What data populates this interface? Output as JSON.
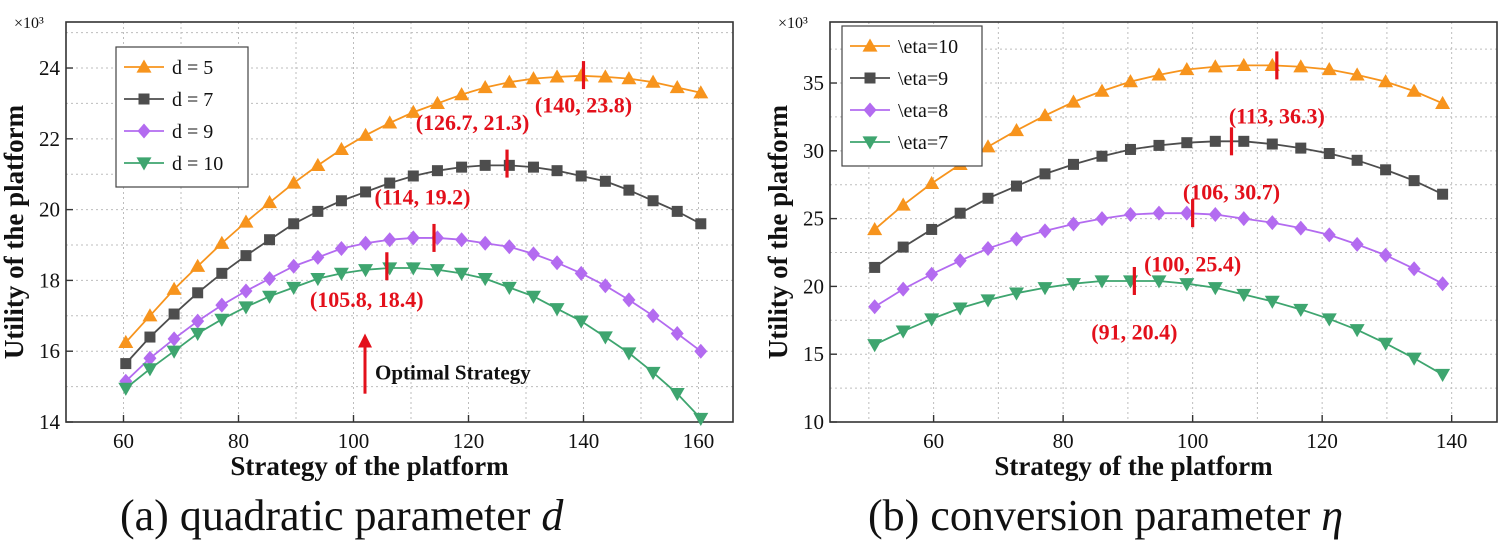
{
  "colors": {
    "d5": "#f7941d",
    "d7": "#4d4d4d",
    "d9": "#b36bf0",
    "d10": "#3ea56f",
    "annotation": "#e3101b",
    "grid": "#bdbdbd"
  },
  "chart_data": [
    {
      "type": "line",
      "panel": "a",
      "caption_prefix": "(a) quadratic parameter",
      "caption_var": "d",
      "xlabel": "Strategy of the platform",
      "ylabel": "Utility of the platform",
      "y_multiplier": "×10³",
      "xlim": [
        50,
        166
      ],
      "ylim": [
        14,
        25.3
      ],
      "xticks": [
        60,
        80,
        100,
        120,
        140,
        160
      ],
      "yticks": [
        14,
        16,
        18,
        20,
        22,
        24
      ],
      "grid": true,
      "legend_position": "top-left",
      "x": [
        60.4,
        64.6,
        68.8,
        72.9,
        77.1,
        81.3,
        85.4,
        89.6,
        93.8,
        97.9,
        102.1,
        106.3,
        110.4,
        114.6,
        118.8,
        122.9,
        127.1,
        131.3,
        135.4,
        139.6,
        143.8,
        147.9,
        152.1,
        156.3,
        160.4
      ],
      "series": [
        {
          "name": "d = 5",
          "marker": "triangle-up",
          "color_key": "d5",
          "values": [
            16.25,
            17.0,
            17.75,
            18.4,
            19.05,
            19.65,
            20.2,
            20.75,
            21.25,
            21.7,
            22.1,
            22.45,
            22.75,
            23.0,
            23.25,
            23.45,
            23.6,
            23.7,
            23.75,
            23.78,
            23.75,
            23.7,
            23.6,
            23.45,
            23.3
          ]
        },
        {
          "name": "d = 7",
          "marker": "square",
          "color_key": "d7",
          "values": [
            15.65,
            16.4,
            17.05,
            17.65,
            18.2,
            18.7,
            19.15,
            19.6,
            19.95,
            20.25,
            20.5,
            20.75,
            20.95,
            21.1,
            21.2,
            21.25,
            21.25,
            21.2,
            21.1,
            20.95,
            20.8,
            20.55,
            20.25,
            19.95,
            19.6
          ]
        },
        {
          "name": "d = 9",
          "marker": "diamond",
          "color_key": "d9",
          "values": [
            15.15,
            15.8,
            16.35,
            16.85,
            17.3,
            17.7,
            18.05,
            18.4,
            18.65,
            18.9,
            19.05,
            19.15,
            19.2,
            19.2,
            19.15,
            19.05,
            18.95,
            18.75,
            18.5,
            18.2,
            17.85,
            17.45,
            17.0,
            16.5,
            16.0
          ]
        },
        {
          "name": "d = 10",
          "marker": "triangle-down",
          "color_key": "d10",
          "values": [
            14.95,
            15.5,
            16.0,
            16.5,
            16.9,
            17.25,
            17.55,
            17.8,
            18.05,
            18.2,
            18.3,
            18.35,
            18.35,
            18.3,
            18.2,
            18.05,
            17.8,
            17.55,
            17.2,
            16.85,
            16.4,
            15.95,
            15.4,
            14.8,
            14.1
          ]
        }
      ],
      "annotations": [
        {
          "text": "(140, 23.8)",
          "x": 140,
          "y": 23.8,
          "label_dx": 0,
          "label_dy": -1.05
        },
        {
          "text": "(126.7, 21.3)",
          "x": 126.7,
          "y": 21.3,
          "label_dx": -6,
          "label_dy": 0.95
        },
        {
          "text": "(114, 19.2)",
          "x": 114,
          "y": 19.2,
          "label_dx": -2,
          "label_dy": 0.95
        },
        {
          "text": "(105.8, 18.4)",
          "x": 105.8,
          "y": 18.4,
          "label_dx": -3.5,
          "label_dy": -1.15
        }
      ],
      "arrow_text": "Optimal Strategy",
      "arrow_at": {
        "x": 102,
        "y_from": 14.8,
        "y_to": 16.5
      }
    },
    {
      "type": "line",
      "panel": "b",
      "caption_prefix": "(b) conversion parameter",
      "caption_var": "η",
      "xlabel": "Strategy of the platform",
      "ylabel": "Utility of the platform",
      "y_multiplier": "×10³",
      "xlim": [
        44,
        147
      ],
      "ylim": [
        10,
        39.5
      ],
      "xticks": [
        60,
        80,
        100,
        120,
        140
      ],
      "yticks": [
        10,
        15,
        20,
        25,
        30,
        35
      ],
      "grid": true,
      "legend_position": "top-left",
      "x": [
        50.9,
        55.3,
        59.7,
        64.1,
        68.4,
        72.8,
        77.2,
        81.6,
        86.0,
        90.4,
        94.8,
        99.1,
        103.5,
        107.9,
        112.3,
        116.7,
        121.1,
        125.4,
        129.8,
        134.2,
        138.6
      ],
      "series": [
        {
          "name": "\\eta=10",
          "marker": "triangle-up",
          "color_key": "d5",
          "values": [
            24.2,
            26.0,
            27.6,
            29.0,
            30.3,
            31.5,
            32.6,
            33.6,
            34.4,
            35.1,
            35.6,
            36.0,
            36.2,
            36.3,
            36.3,
            36.2,
            36.0,
            35.6,
            35.1,
            34.4,
            33.5
          ]
        },
        {
          "name": "\\eta=9",
          "marker": "square",
          "color_key": "d7",
          "values": [
            21.4,
            22.9,
            24.2,
            25.4,
            26.5,
            27.4,
            28.3,
            29.0,
            29.6,
            30.1,
            30.4,
            30.6,
            30.7,
            30.7,
            30.5,
            30.2,
            29.8,
            29.3,
            28.6,
            27.8,
            26.8
          ]
        },
        {
          "name": "\\eta=8",
          "marker": "diamond",
          "color_key": "d9",
          "values": [
            18.5,
            19.8,
            20.9,
            21.9,
            22.8,
            23.5,
            24.1,
            24.6,
            25.0,
            25.3,
            25.4,
            25.4,
            25.3,
            25.0,
            24.7,
            24.3,
            23.8,
            23.1,
            22.3,
            21.3,
            20.2
          ]
        },
        {
          "name": "\\eta=7",
          "marker": "triangle-down",
          "color_key": "d10",
          "values": [
            15.7,
            16.7,
            17.6,
            18.4,
            19.0,
            19.5,
            19.9,
            20.2,
            20.4,
            20.4,
            20.4,
            20.2,
            19.9,
            19.4,
            18.9,
            18.3,
            17.6,
            16.8,
            15.8,
            14.7,
            13.5
          ]
        }
      ],
      "annotations": [
        {
          "text": "(113, 36.3)",
          "x": 113,
          "y": 36.3,
          "label_dx": 0,
          "label_dy": -4.3
        },
        {
          "text": "(106, 30.7)",
          "x": 106,
          "y": 30.7,
          "label_dx": 0,
          "label_dy": -4.3
        },
        {
          "text": "(100, 25.4)",
          "x": 100,
          "y": 25.4,
          "label_dx": 0,
          "label_dy": -4.3
        },
        {
          "text": "(91, 20.4)",
          "x": 91,
          "y": 20.4,
          "label_dx": 0,
          "label_dy": -4.3
        }
      ]
    }
  ]
}
